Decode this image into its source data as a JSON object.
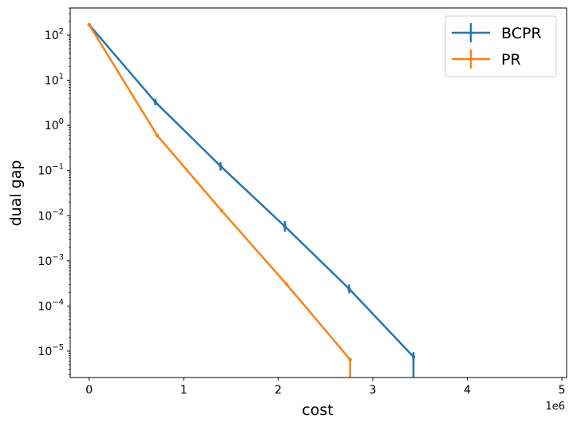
{
  "chart_data": {
    "type": "line",
    "xlabel": "cost",
    "ylabel": "dual gap",
    "x_offset_label": "1e6",
    "x_scale": "linear",
    "y_scale": "log",
    "xlim": [
      -200000,
      5050000
    ],
    "ylim": [
      2.6e-06,
      400
    ],
    "xticks": [
      0,
      1000000,
      2000000,
      3000000,
      4000000,
      5000000
    ],
    "xtick_labels": [
      "0",
      "1",
      "2",
      "3",
      "4",
      "5"
    ],
    "ytick_exponents": [
      -5,
      -4,
      -3,
      -2,
      -1,
      0,
      1,
      2
    ],
    "ytick_base": "10",
    "grid": false,
    "legend_position": "top-right",
    "series": [
      {
        "name": "BCPR",
        "color": "#1f77b4",
        "x": [
          0,
          700000,
          1390000,
          2070000,
          2750000,
          3430000
        ],
        "y": [
          170,
          3.3,
          0.125,
          0.0058,
          0.00024,
          7.5e-06
        ],
        "err_low": [
          0,
          0.5,
          0.025,
          0.0014,
          5e-05,
          1.8e-06
        ],
        "err_high": [
          0,
          0.6,
          0.03,
          0.0018,
          6e-05,
          2e-06
        ]
      },
      {
        "name": "PR",
        "color": "#ff7f0e",
        "x": [
          0,
          720000,
          1400000,
          2090000,
          2760000
        ],
        "y": [
          170,
          0.6,
          0.013,
          0.0003,
          6.5e-06
        ],
        "err_low": [
          0,
          0.06,
          0.001,
          2e-05,
          2e-07
        ],
        "err_high": [
          0,
          0.06,
          0.001,
          2e-05,
          2e-07
        ]
      }
    ]
  }
}
